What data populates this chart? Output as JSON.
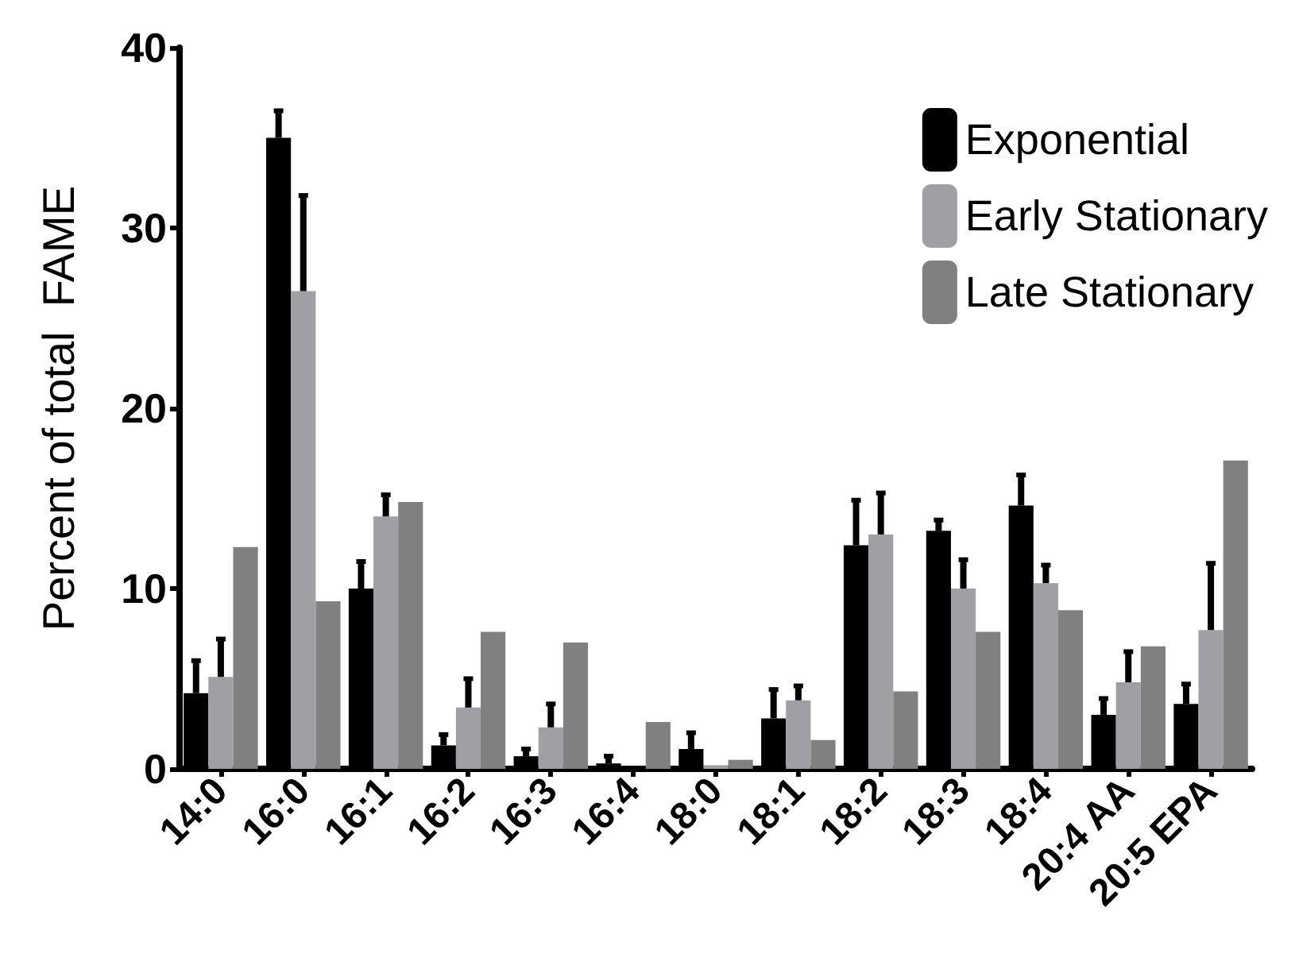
{
  "chart_data": {
    "type": "bar",
    "ylabel": "Percent of total  FAME",
    "categories": [
      "14:0",
      "16:0",
      "16:1",
      "16:2",
      "16:3",
      "16:4",
      "18:0",
      "18:1",
      "18:2",
      "18:3",
      "18:4",
      "20:4 AA",
      "20:5 EPA"
    ],
    "series": [
      {
        "name": "Exponential",
        "color": "#000000",
        "values": [
          4.2,
          35,
          10,
          1.3,
          0.7,
          0.3,
          1.1,
          2.8,
          12.4,
          13.2,
          14.6,
          3.0,
          3.6
        ],
        "errors": [
          [
            4.2,
            6.0
          ],
          [
            35,
            36.5
          ],
          [
            10,
            11.5
          ],
          [
            1.3,
            1.9
          ],
          [
            0.7,
            1.1
          ],
          [
            0.3,
            0.7
          ],
          [
            1.1,
            2.0
          ],
          [
            2.8,
            4.4
          ],
          [
            12.4,
            14.9
          ],
          [
            13.2,
            13.8
          ],
          [
            14.6,
            16.3
          ],
          [
            3.0,
            3.9
          ],
          [
            3.6,
            4.7
          ]
        ]
      },
      {
        "name": "Early Stationary",
        "color": "#a0a0a4",
        "values": [
          5.1,
          26.5,
          14,
          3.4,
          2.3,
          0,
          0.2,
          3.8,
          13,
          10,
          10.3,
          4.8,
          7.7
        ],
        "errors": [
          [
            5.1,
            7.2
          ],
          [
            26.5,
            31.8
          ],
          [
            14,
            15.2
          ],
          [
            3.4,
            5.0
          ],
          [
            2.3,
            3.6
          ],
          null,
          null,
          [
            3.8,
            4.6
          ],
          [
            13,
            15.3
          ],
          [
            10,
            11.6
          ],
          [
            10.3,
            11.3
          ],
          [
            4.8,
            6.5
          ],
          [
            7.7,
            11.4
          ]
        ]
      },
      {
        "name": "Late Stationary",
        "color": "#808080",
        "values": [
          12.3,
          9.3,
          14.8,
          7.6,
          7.0,
          2.6,
          0.5,
          1.6,
          4.3,
          7.6,
          8.8,
          6.8,
          17.1
        ]
      }
    ],
    "ylim": [
      0,
      40
    ],
    "yticks": [
      0,
      10,
      20,
      30,
      40
    ],
    "grid": false,
    "legend": "top right"
  }
}
